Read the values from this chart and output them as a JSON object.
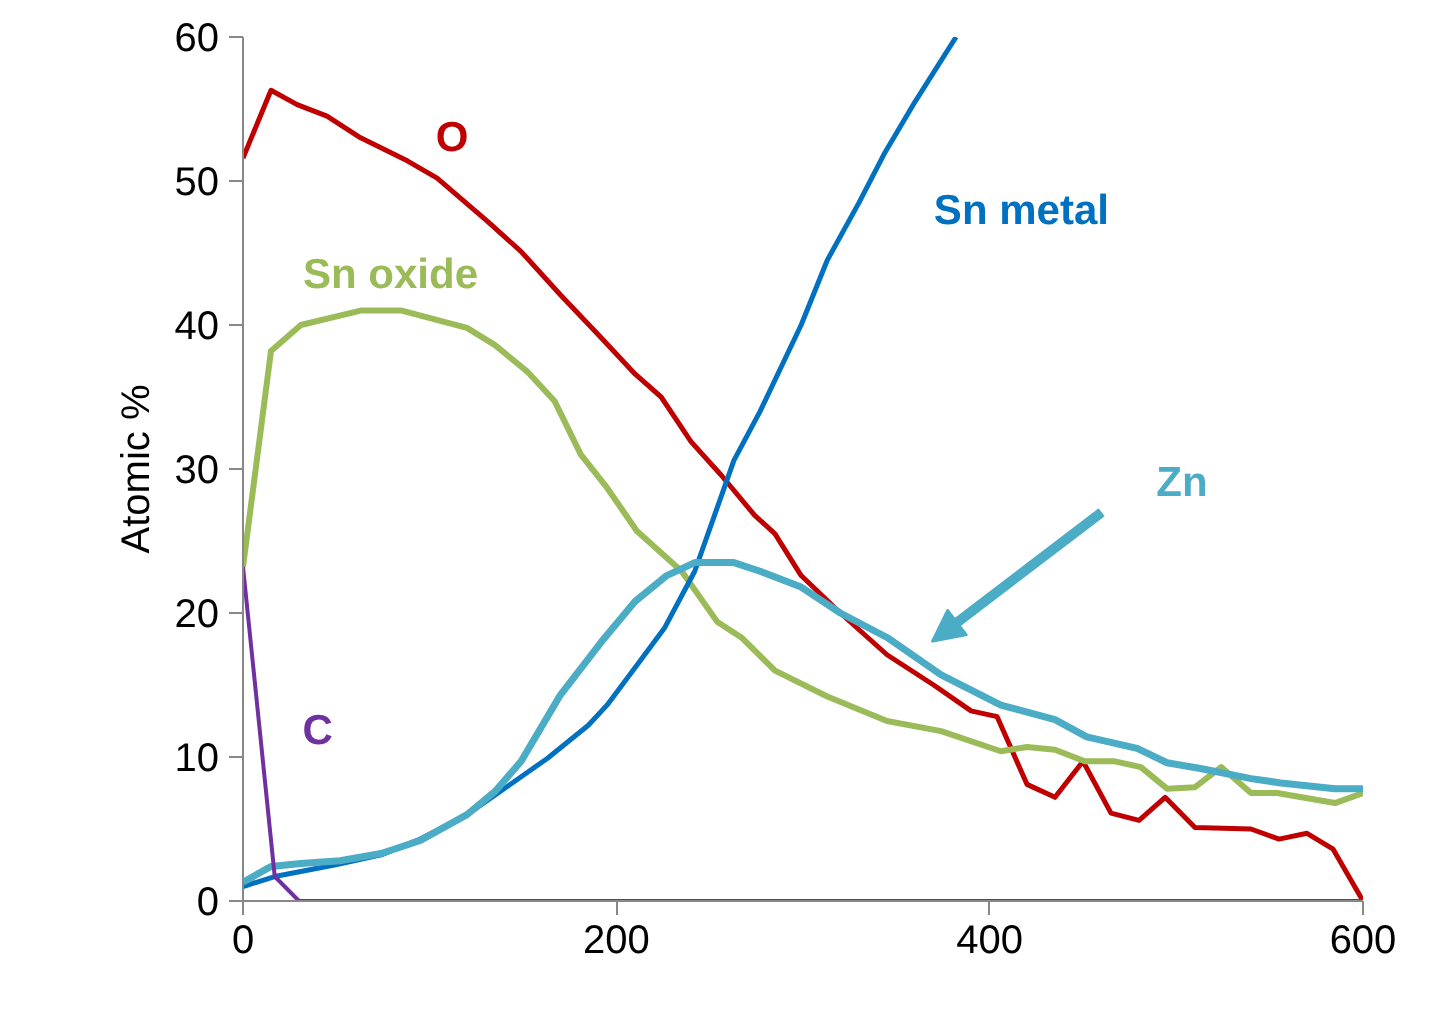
{
  "chart_data": {
    "type": "line",
    "ylabel": "Atomic %",
    "xlim": [
      0,
      600
    ],
    "ylim": [
      0,
      60
    ],
    "xticks": [
      0,
      200,
      400,
      600
    ],
    "yticks": [
      0,
      10,
      20,
      30,
      40,
      50,
      60
    ],
    "grid": false,
    "series": [
      {
        "name": "O",
        "color": "#c00000",
        "x": [
          0,
          15,
          29,
          45,
          63,
          88,
          104,
          131,
          149,
          170,
          192,
          210,
          224,
          240,
          256,
          274,
          285,
          299,
          320,
          345,
          370,
          390,
          404,
          420,
          435,
          450,
          465,
          480,
          494,
          510,
          540,
          555,
          570,
          584,
          600
        ],
        "values": [
          51.6,
          56.3,
          55.3,
          54.5,
          53,
          51.4,
          50.2,
          47.2,
          45.1,
          42.1,
          39.1,
          36.6,
          35,
          31.9,
          29.6,
          26.8,
          25.5,
          22.6,
          20,
          17.1,
          15,
          13.2,
          12.8,
          8.1,
          7.2,
          9.7,
          6.1,
          5.6,
          7.2,
          5.1,
          5,
          4.3,
          4.7,
          3.6,
          0
        ]
      },
      {
        "name": "Sn oxide",
        "color": "#9bbb59",
        "x": [
          0,
          15,
          31,
          63,
          85,
          120,
          135,
          152,
          167,
          181,
          195,
          211,
          235,
          254,
          267,
          285,
          313,
          345,
          374,
          406,
          420,
          435,
          451,
          467,
          481,
          495,
          510,
          524,
          540,
          554,
          585,
          600
        ],
        "values": [
          23.2,
          38.2,
          40,
          41,
          41,
          39.8,
          38.6,
          36.8,
          34.7,
          31,
          28.7,
          25.7,
          22.9,
          19.4,
          18.3,
          16,
          14.2,
          12.5,
          11.8,
          10.4,
          10.7,
          10.5,
          9.7,
          9.7,
          9.3,
          7.8,
          7.9,
          9.3,
          7.5,
          7.5,
          6.8,
          7.5
        ]
      },
      {
        "name": "Sn metal",
        "color": "#0070c0",
        "x": [
          0,
          17,
          49,
          74,
          95,
          120,
          141,
          163,
          185,
          195,
          210,
          226,
          242,
          263,
          277,
          299,
          313,
          330,
          344,
          360,
          382
        ],
        "values": [
          1,
          1.7,
          2.5,
          3.2,
          4.3,
          6,
          7.9,
          9.9,
          12.2,
          13.6,
          16.2,
          19,
          22.9,
          30.6,
          34,
          40,
          44.5,
          48.5,
          52,
          55.5,
          60
        ]
      },
      {
        "name": "Zn",
        "color": "#4bacc6",
        "x": [
          0,
          15,
          31,
          52,
          74,
          95,
          120,
          135,
          149,
          170,
          192,
          210,
          227,
          242,
          263,
          277,
          299,
          320,
          345,
          374,
          406,
          435,
          452,
          479,
          495,
          513,
          540,
          556,
          585,
          600
        ],
        "values": [
          1.3,
          2.4,
          2.6,
          2.8,
          3.3,
          4.2,
          6,
          7.6,
          9.7,
          14.3,
          18,
          20.8,
          22.6,
          23.5,
          23.5,
          22.9,
          21.8,
          20,
          18.3,
          15.7,
          13.6,
          12.6,
          11.4,
          10.6,
          9.6,
          9.2,
          8.5,
          8.2,
          7.8,
          7.8
        ]
      },
      {
        "name": "C",
        "color": "#7030a0",
        "x": [
          0,
          17,
          30,
          600
        ],
        "values": [
          23.2,
          1.7,
          0,
          0
        ]
      }
    ]
  }
}
